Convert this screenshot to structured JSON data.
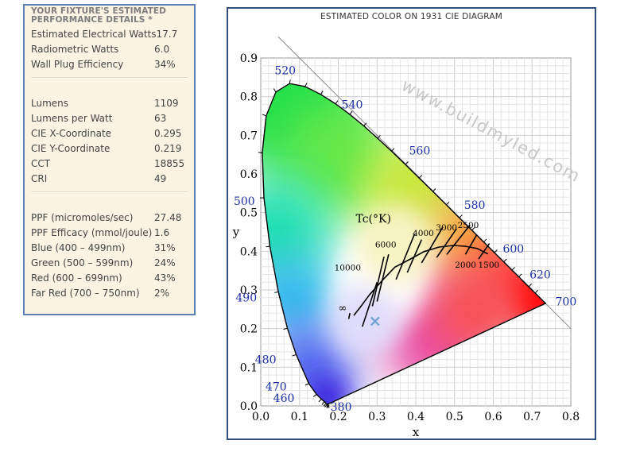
{
  "performance": {
    "title_line1": "YOUR FIXTURE'S ESTIMATED",
    "title_line2": "PERFORMANCE DETAILS *",
    "groups": [
      [
        {
          "label": "Estimated Electrical Watts",
          "value": "17.7"
        },
        {
          "label": "Radiometric Watts",
          "value": "6.0"
        },
        {
          "label": "Wall Plug Efficiency",
          "value": "34%"
        }
      ],
      [
        {
          "label": "Lumens",
          "value": "1109"
        },
        {
          "label": "Lumens per Watt",
          "value": "63"
        },
        {
          "label": "CIE X-Coordinate",
          "value": "0.295"
        },
        {
          "label": "CIE Y-Coordinate",
          "value": "0.219"
        },
        {
          "label": "CCT",
          "value": "18855"
        },
        {
          "label": "CRI",
          "value": "49"
        }
      ],
      [
        {
          "label": "PPF (micromoles/sec)",
          "value": "27.48"
        },
        {
          "label": "PPF Efficacy (mmol/joule)",
          "value": "1.6"
        },
        {
          "label": "Blue (400 – 499nm)",
          "value": "31%"
        },
        {
          "label": "Green (500 – 599nm)",
          "value": "24%"
        },
        {
          "label": "Red (600 – 699nm)",
          "value": "43%"
        },
        {
          "label": "Far Red (700 – 750nm)",
          "value": "2%"
        }
      ]
    ]
  },
  "cie": {
    "title": "ESTIMATED COLOR ON 1931 CIE DIAGRAM",
    "watermark": "www.buildmyled.com",
    "xlabel": "x",
    "ylabel": "y",
    "tc_label": "Tc(°K)",
    "x_ticks": [
      "0.0",
      "0.1",
      "0.2",
      "0.3",
      "0.4",
      "0.5",
      "0.6",
      "0.7",
      "0.8"
    ],
    "y_ticks": [
      "0.0",
      "0.1",
      "0.2",
      "0.3",
      "0.4",
      "0.5",
      "0.6",
      "0.7",
      "0.8",
      "0.9"
    ],
    "wavelength_labels": [
      "380",
      "460",
      "470",
      "480",
      "490",
      "500",
      "520",
      "540",
      "560",
      "580",
      "600",
      "620",
      "700"
    ],
    "cct_labels": [
      "10000",
      "6000",
      "4000",
      "3000",
      "2500",
      "2000",
      "1500",
      "∞"
    ],
    "marker": {
      "x": 0.295,
      "y": 0.219,
      "color": "#6fa3cf"
    },
    "locus_color": "#000000",
    "wavelength_label_color": "#1a2fa6"
  },
  "chart_data": {
    "type": "scatter",
    "title": "ESTIMATED COLOR ON 1931 CIE DIAGRAM",
    "xlabel": "x",
    "ylabel": "y",
    "xlim": [
      0.0,
      0.8
    ],
    "ylim": [
      0.0,
      0.9
    ],
    "grid": true,
    "series": [
      {
        "values": [
          {
            "x": 0.295,
            "y": 0.219
          }
        ]
      }
    ]
  }
}
